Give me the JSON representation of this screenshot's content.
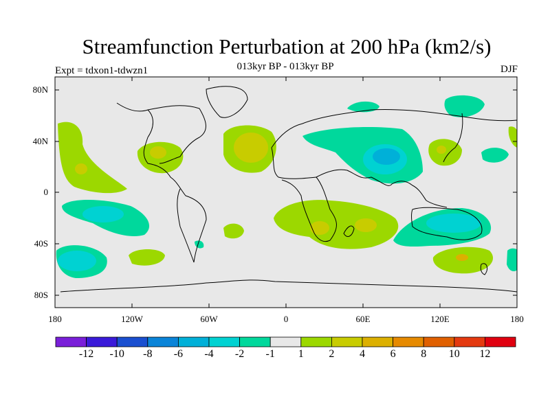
{
  "title": "Streamfunction Perturbation at 200 hPa (km2/s)",
  "subtitle": "013kyr BP - 013kyr BP",
  "left_label": "Expt = tdxon1-tdwzn1",
  "right_label": "DJF",
  "lat_labels": [
    "80N",
    "40N",
    "0",
    "40S",
    "80S"
  ],
  "lon_labels": [
    "180",
    "120W",
    "60W",
    "0",
    "60E",
    "120E",
    "180"
  ],
  "colorbar": {
    "colors": [
      "#7a1fd9",
      "#3a1ad9",
      "#1a4fd0",
      "#0a84d8",
      "#00b0d8",
      "#00d2d2",
      "#00d89c",
      "#e8e8e8",
      "#9cd800",
      "#c8cc00",
      "#dcb000",
      "#e68a00",
      "#e06000",
      "#e43a10",
      "#e00010"
    ],
    "labels": [
      "-12",
      "-10",
      "-8",
      "-6",
      "-4",
      "-2",
      "-1",
      "1",
      "2",
      "4",
      "6",
      "8",
      "10",
      "12"
    ]
  }
}
